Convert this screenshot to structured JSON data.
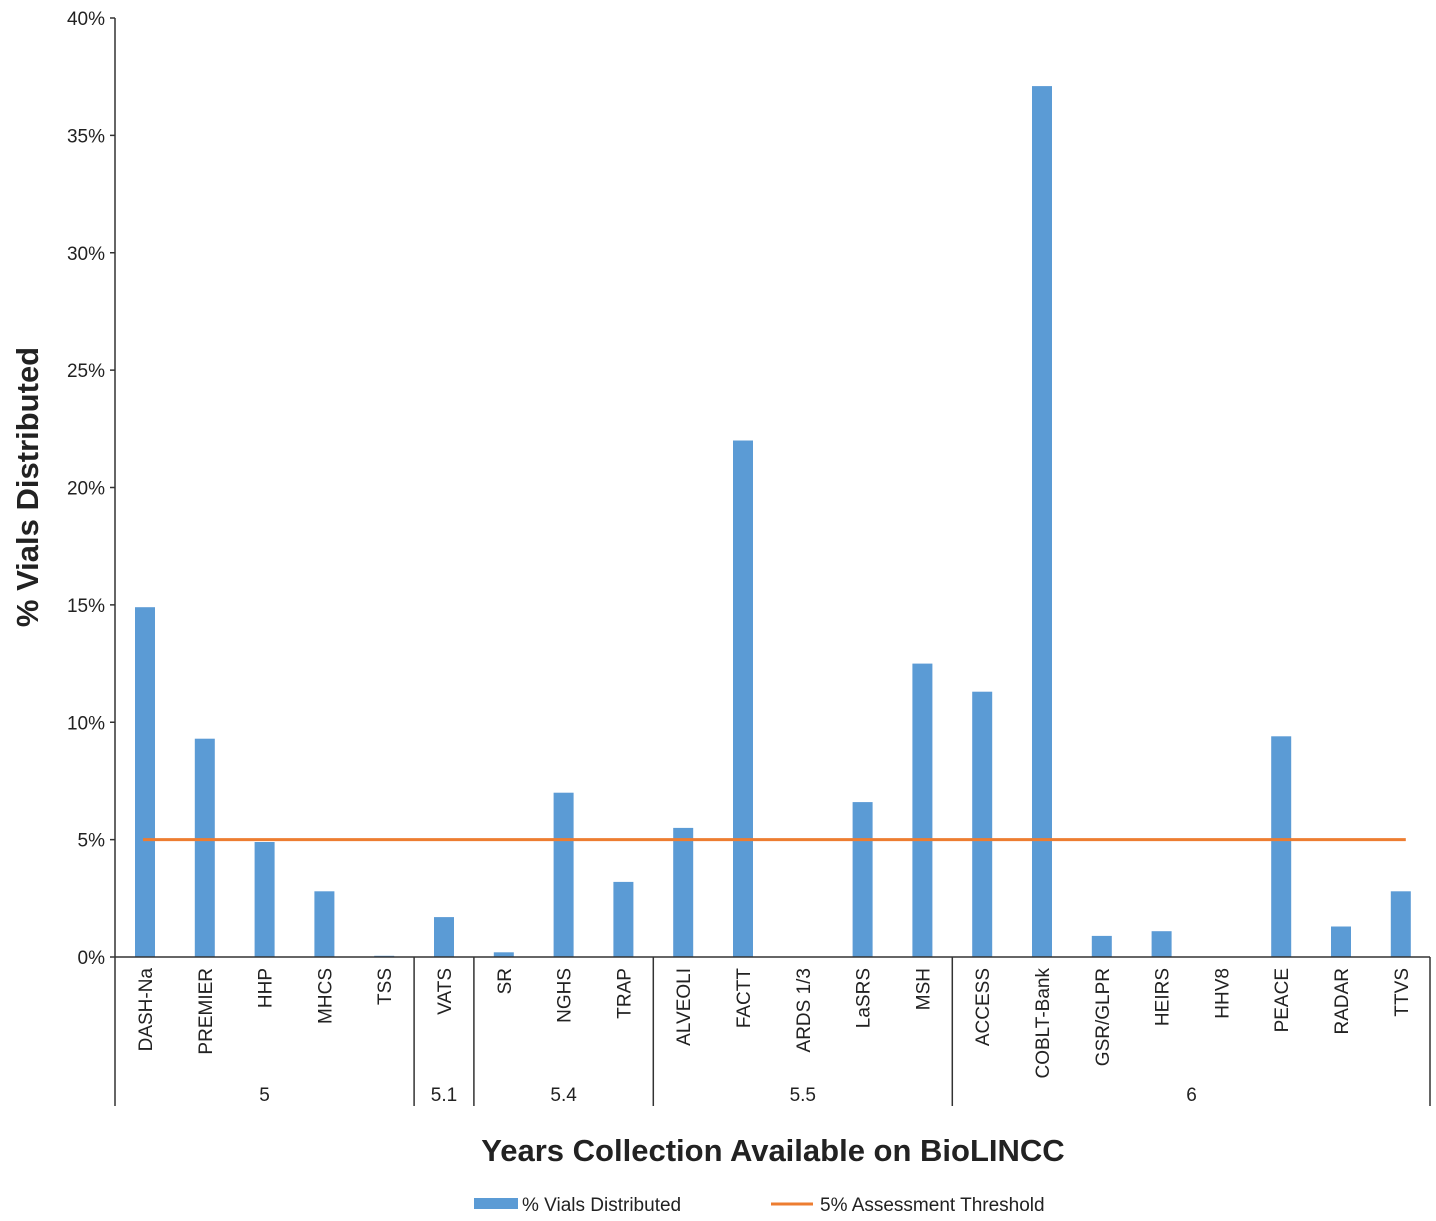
{
  "chart_data": {
    "type": "bar",
    "ylabel": "% Vials Distributed",
    "xlabel": "Years Collection Available on BioLINCC",
    "ylim": [
      0,
      40
    ],
    "yticks": [
      0,
      5,
      10,
      15,
      20,
      25,
      30,
      35,
      40
    ],
    "ytick_labels": [
      "0%",
      "5%",
      "10%",
      "15%",
      "20%",
      "25%",
      "30%",
      "35%",
      "40%"
    ],
    "grid": false,
    "legend_position": "bottom",
    "categories": [
      "DASH-Na",
      "PREMIER",
      "HHP",
      "MHCS",
      "TSS",
      "VATS",
      "SR",
      "NGHS",
      "TRAP",
      "ALVEOLI",
      "FACTT",
      "ARDS 1/3",
      "LaSRS",
      "MSH",
      "ACCESS",
      "COBLT-Bank",
      "GSR/GLPR",
      "HEIRS",
      "HHV8",
      "PEACE",
      "RADAR",
      "TTVS"
    ],
    "groups": [
      {
        "label": "5",
        "count": 5
      },
      {
        "label": "5.1",
        "count": 1
      },
      {
        "label": "5.4",
        "count": 3
      },
      {
        "label": "5.5",
        "count": 5
      },
      {
        "label": "6",
        "count": 8
      }
    ],
    "series": [
      {
        "name": "% Vials Distributed",
        "type": "bar",
        "color": "#5b9bd5",
        "values": [
          14.9,
          9.3,
          4.9,
          2.8,
          0.05,
          1.7,
          0.2,
          7.0,
          3.2,
          5.5,
          22.0,
          0,
          6.6,
          12.5,
          11.3,
          37.1,
          0.9,
          1.1,
          0,
          9.4,
          1.3,
          2.8
        ]
      },
      {
        "name": "5% Assessment Threshold",
        "type": "line",
        "color": "#ed7d31",
        "value": 5
      }
    ]
  }
}
